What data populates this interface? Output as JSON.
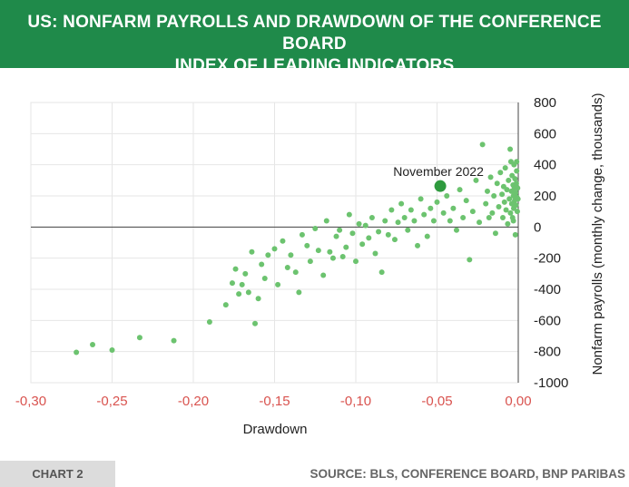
{
  "header": {
    "title_line1": "US: NONFARM PAYROLLS AND DRAWDOWN OF THE CONFERENCE BOARD",
    "title_line2": "INDEX OF LEADING INDICATORS"
  },
  "footer": {
    "tag": "CHART 2",
    "source": "SOURCE: BLS, CONFERENCE BOARD, BNP PARIBAS"
  },
  "colors": {
    "header_bg": "#1f8a4a",
    "point": "#6cc36f",
    "highlight": "#2e9a3e",
    "x_tick_label": "#d9534f",
    "y_tick_label": "#222222"
  },
  "chart_data": {
    "type": "scatter",
    "title": "US: NONFARM PAYROLLS AND DRAWDOWN OF THE CONFERENCE BOARD INDEX OF LEADING INDICATORS",
    "xlabel": "Drawdown",
    "ylabel": "Nonfarm payrolls (monthly change, thousands)",
    "xlim": [
      -0.3,
      0.0
    ],
    "ylim": [
      -1000,
      800
    ],
    "x_ticks": [
      -0.3,
      -0.25,
      -0.2,
      -0.15,
      -0.1,
      -0.05,
      0.0
    ],
    "x_tick_labels": [
      "-0,30",
      "-0,25",
      "-0,20",
      "-0,15",
      "-0,10",
      "-0,05",
      "0,00"
    ],
    "y_ticks": [
      -1000,
      -800,
      -600,
      -400,
      -200,
      0,
      200,
      400,
      600,
      800
    ],
    "y_tick_labels": [
      "-1000",
      "-800",
      "-600",
      "-400",
      "-200",
      "0",
      "200",
      "400",
      "600",
      "800"
    ],
    "y_axis_side": "right",
    "grid": true,
    "annotation": {
      "label": "November 2022",
      "x": -0.048,
      "y": 263
    },
    "points": [
      [
        -0.272,
        -805
      ],
      [
        -0.262,
        -755
      ],
      [
        -0.25,
        -790
      ],
      [
        -0.233,
        -710
      ],
      [
        -0.212,
        -730
      ],
      [
        -0.19,
        -610
      ],
      [
        -0.18,
        -500
      ],
      [
        -0.176,
        -360
      ],
      [
        -0.174,
        -270
      ],
      [
        -0.172,
        -430
      ],
      [
        -0.17,
        -370
      ],
      [
        -0.168,
        -300
      ],
      [
        -0.166,
        -420
      ],
      [
        -0.164,
        -160
      ],
      [
        -0.162,
        -620
      ],
      [
        -0.16,
        -460
      ],
      [
        -0.158,
        -240
      ],
      [
        -0.156,
        -330
      ],
      [
        -0.154,
        -180
      ],
      [
        -0.15,
        -140
      ],
      [
        -0.148,
        -370
      ],
      [
        -0.145,
        -90
      ],
      [
        -0.142,
        -260
      ],
      [
        -0.14,
        -180
      ],
      [
        -0.137,
        -290
      ],
      [
        -0.135,
        -420
      ],
      [
        -0.133,
        -50
      ],
      [
        -0.13,
        -120
      ],
      [
        -0.128,
        -220
      ],
      [
        -0.125,
        -10
      ],
      [
        -0.123,
        -150
      ],
      [
        -0.12,
        -310
      ],
      [
        -0.118,
        40
      ],
      [
        -0.116,
        -160
      ],
      [
        -0.114,
        -200
      ],
      [
        -0.112,
        -60
      ],
      [
        -0.11,
        -20
      ],
      [
        -0.108,
        -190
      ],
      [
        -0.106,
        -130
      ],
      [
        -0.104,
        80
      ],
      [
        -0.102,
        -40
      ],
      [
        -0.1,
        -220
      ],
      [
        -0.098,
        20
      ],
      [
        -0.096,
        -110
      ],
      [
        -0.094,
        10
      ],
      [
        -0.092,
        -70
      ],
      [
        -0.09,
        60
      ],
      [
        -0.088,
        -170
      ],
      [
        -0.086,
        -30
      ],
      [
        -0.084,
        -290
      ],
      [
        -0.082,
        40
      ],
      [
        -0.08,
        -50
      ],
      [
        -0.078,
        110
      ],
      [
        -0.076,
        -80
      ],
      [
        -0.074,
        30
      ],
      [
        -0.072,
        150
      ],
      [
        -0.07,
        60
      ],
      [
        -0.068,
        -20
      ],
      [
        -0.066,
        110
      ],
      [
        -0.064,
        40
      ],
      [
        -0.062,
        -120
      ],
      [
        -0.06,
        180
      ],
      [
        -0.058,
        80
      ],
      [
        -0.056,
        -60
      ],
      [
        -0.054,
        120
      ],
      [
        -0.052,
        40
      ],
      [
        -0.05,
        160
      ],
      [
        -0.046,
        90
      ],
      [
        -0.044,
        200
      ],
      [
        -0.042,
        40
      ],
      [
        -0.04,
        120
      ],
      [
        -0.038,
        -20
      ],
      [
        -0.036,
        240
      ],
      [
        -0.034,
        60
      ],
      [
        -0.032,
        170
      ],
      [
        -0.03,
        -210
      ],
      [
        -0.028,
        100
      ],
      [
        -0.026,
        300
      ],
      [
        -0.024,
        30
      ],
      [
        -0.022,
        530
      ],
      [
        -0.02,
        150
      ],
      [
        -0.019,
        230
      ],
      [
        -0.018,
        60
      ],
      [
        -0.017,
        320
      ],
      [
        -0.016,
        90
      ],
      [
        -0.015,
        200
      ],
      [
        -0.014,
        -40
      ],
      [
        -0.013,
        280
      ],
      [
        -0.012,
        130
      ],
      [
        -0.011,
        350
      ],
      [
        -0.01,
        210
      ],
      [
        -0.0095,
        60
      ],
      [
        -0.009,
        260
      ],
      [
        -0.0085,
        160
      ],
      [
        -0.008,
        380
      ],
      [
        -0.0075,
        110
      ],
      [
        -0.007,
        240
      ],
      [
        -0.0065,
        20
      ],
      [
        -0.006,
        300
      ],
      [
        -0.0055,
        180
      ],
      [
        -0.005,
        500
      ],
      [
        -0.0048,
        90
      ],
      [
        -0.0045,
        420
      ],
      [
        -0.0042,
        230
      ],
      [
        -0.004,
        150
      ],
      [
        -0.0038,
        330
      ],
      [
        -0.0035,
        60
      ],
      [
        -0.0032,
        270
      ],
      [
        -0.003,
        200
      ],
      [
        -0.0028,
        120
      ],
      [
        -0.0026,
        400
      ],
      [
        -0.0024,
        250
      ],
      [
        -0.0022,
        170
      ],
      [
        -0.002,
        310
      ],
      [
        -0.0018,
        -50
      ],
      [
        -0.0016,
        220
      ],
      [
        -0.0014,
        140
      ],
      [
        -0.0012,
        280
      ],
      [
        -0.001,
        360
      ],
      [
        -0.0008,
        190
      ],
      [
        -0.0006,
        100
      ],
      [
        -0.0004,
        250
      ],
      [
        -0.0002,
        180
      ],
      [
        -0.001,
        420
      ],
      [
        -0.003,
        40
      ]
    ]
  }
}
